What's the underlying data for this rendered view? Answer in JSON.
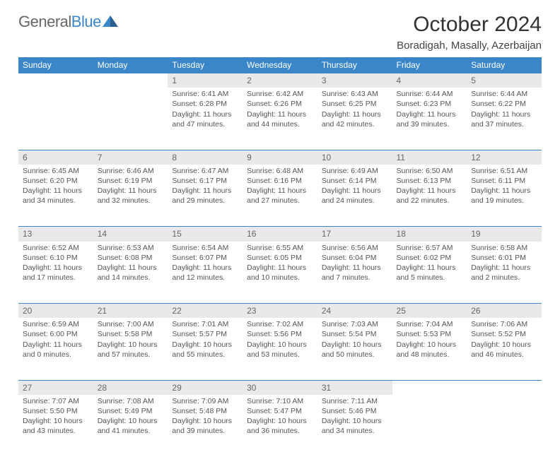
{
  "logo": {
    "part1": "General",
    "part2": "Blue"
  },
  "title": "October 2024",
  "location": "Boradigah, Masally, Azerbaijan",
  "colors": {
    "accent": "#3a86c8",
    "dayhead_bg": "#e9e9e9",
    "text": "#555"
  },
  "days_of_week": [
    "Sunday",
    "Monday",
    "Tuesday",
    "Wednesday",
    "Thursday",
    "Friday",
    "Saturday"
  ],
  "weeks": [
    [
      null,
      null,
      {
        "n": "1",
        "sr": "6:41 AM",
        "ss": "6:28 PM",
        "dl": "11 hours and 47 minutes."
      },
      {
        "n": "2",
        "sr": "6:42 AM",
        "ss": "6:26 PM",
        "dl": "11 hours and 44 minutes."
      },
      {
        "n": "3",
        "sr": "6:43 AM",
        "ss": "6:25 PM",
        "dl": "11 hours and 42 minutes."
      },
      {
        "n": "4",
        "sr": "6:44 AM",
        "ss": "6:23 PM",
        "dl": "11 hours and 39 minutes."
      },
      {
        "n": "5",
        "sr": "6:44 AM",
        "ss": "6:22 PM",
        "dl": "11 hours and 37 minutes."
      }
    ],
    [
      {
        "n": "6",
        "sr": "6:45 AM",
        "ss": "6:20 PM",
        "dl": "11 hours and 34 minutes."
      },
      {
        "n": "7",
        "sr": "6:46 AM",
        "ss": "6:19 PM",
        "dl": "11 hours and 32 minutes."
      },
      {
        "n": "8",
        "sr": "6:47 AM",
        "ss": "6:17 PM",
        "dl": "11 hours and 29 minutes."
      },
      {
        "n": "9",
        "sr": "6:48 AM",
        "ss": "6:16 PM",
        "dl": "11 hours and 27 minutes."
      },
      {
        "n": "10",
        "sr": "6:49 AM",
        "ss": "6:14 PM",
        "dl": "11 hours and 24 minutes."
      },
      {
        "n": "11",
        "sr": "6:50 AM",
        "ss": "6:13 PM",
        "dl": "11 hours and 22 minutes."
      },
      {
        "n": "12",
        "sr": "6:51 AM",
        "ss": "6:11 PM",
        "dl": "11 hours and 19 minutes."
      }
    ],
    [
      {
        "n": "13",
        "sr": "6:52 AM",
        "ss": "6:10 PM",
        "dl": "11 hours and 17 minutes."
      },
      {
        "n": "14",
        "sr": "6:53 AM",
        "ss": "6:08 PM",
        "dl": "11 hours and 14 minutes."
      },
      {
        "n": "15",
        "sr": "6:54 AM",
        "ss": "6:07 PM",
        "dl": "11 hours and 12 minutes."
      },
      {
        "n": "16",
        "sr": "6:55 AM",
        "ss": "6:05 PM",
        "dl": "11 hours and 10 minutes."
      },
      {
        "n": "17",
        "sr": "6:56 AM",
        "ss": "6:04 PM",
        "dl": "11 hours and 7 minutes."
      },
      {
        "n": "18",
        "sr": "6:57 AM",
        "ss": "6:02 PM",
        "dl": "11 hours and 5 minutes."
      },
      {
        "n": "19",
        "sr": "6:58 AM",
        "ss": "6:01 PM",
        "dl": "11 hours and 2 minutes."
      }
    ],
    [
      {
        "n": "20",
        "sr": "6:59 AM",
        "ss": "6:00 PM",
        "dl": "11 hours and 0 minutes."
      },
      {
        "n": "21",
        "sr": "7:00 AM",
        "ss": "5:58 PM",
        "dl": "10 hours and 57 minutes."
      },
      {
        "n": "22",
        "sr": "7:01 AM",
        "ss": "5:57 PM",
        "dl": "10 hours and 55 minutes."
      },
      {
        "n": "23",
        "sr": "7:02 AM",
        "ss": "5:56 PM",
        "dl": "10 hours and 53 minutes."
      },
      {
        "n": "24",
        "sr": "7:03 AM",
        "ss": "5:54 PM",
        "dl": "10 hours and 50 minutes."
      },
      {
        "n": "25",
        "sr": "7:04 AM",
        "ss": "5:53 PM",
        "dl": "10 hours and 48 minutes."
      },
      {
        "n": "26",
        "sr": "7:06 AM",
        "ss": "5:52 PM",
        "dl": "10 hours and 46 minutes."
      }
    ],
    [
      {
        "n": "27",
        "sr": "7:07 AM",
        "ss": "5:50 PM",
        "dl": "10 hours and 43 minutes."
      },
      {
        "n": "28",
        "sr": "7:08 AM",
        "ss": "5:49 PM",
        "dl": "10 hours and 41 minutes."
      },
      {
        "n": "29",
        "sr": "7:09 AM",
        "ss": "5:48 PM",
        "dl": "10 hours and 39 minutes."
      },
      {
        "n": "30",
        "sr": "7:10 AM",
        "ss": "5:47 PM",
        "dl": "10 hours and 36 minutes."
      },
      {
        "n": "31",
        "sr": "7:11 AM",
        "ss": "5:46 PM",
        "dl": "10 hours and 34 minutes."
      },
      null,
      null
    ]
  ],
  "labels": {
    "sunrise": "Sunrise: ",
    "sunset": "Sunset: ",
    "daylight": "Daylight: "
  }
}
